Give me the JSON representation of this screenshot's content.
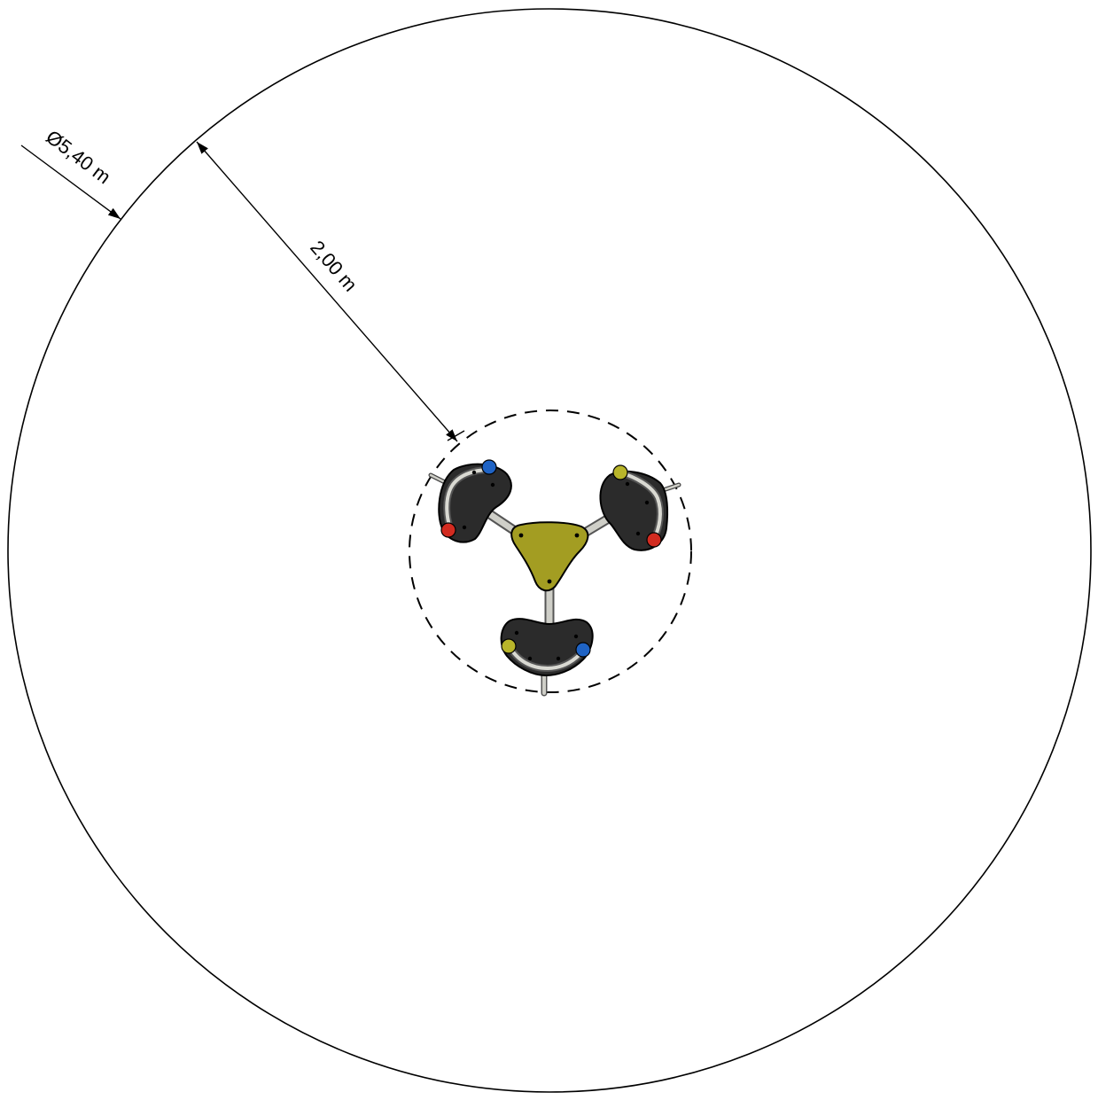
{
  "dimensions": {
    "safety_zone_diameter": "Ø5,40 m",
    "clearance_distance": "2,00 m"
  },
  "colors": {
    "background": "#ffffff",
    "lines": "#000000",
    "seat": "#2b2b2b",
    "hub": "#a39d22",
    "tube": "#cfcfc8",
    "knob_red": "#d22b20",
    "knob_blue": "#1f63c4",
    "knob_yellow": "#b8b52a"
  },
  "equipment": {
    "seats": [
      {
        "name": "seat-left",
        "knobs": [
          "blue",
          "red"
        ]
      },
      {
        "name": "seat-right",
        "knobs": [
          "yellow",
          "red"
        ]
      },
      {
        "name": "seat-bottom",
        "knobs": [
          "yellow",
          "blue"
        ]
      }
    ]
  }
}
